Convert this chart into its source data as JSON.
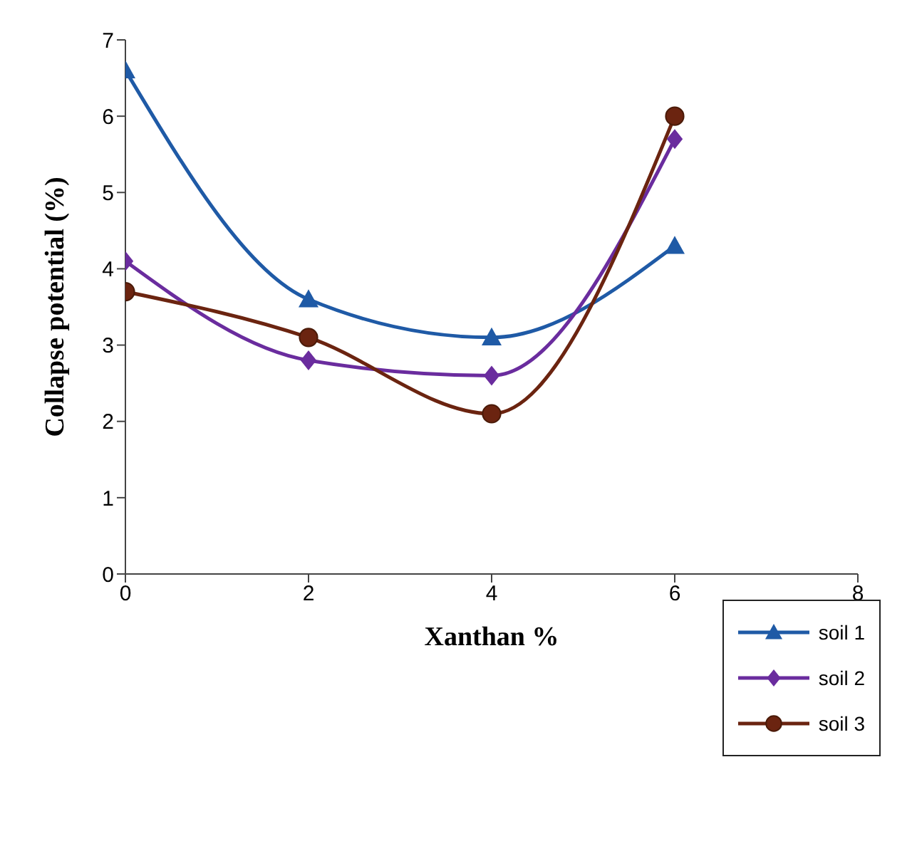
{
  "chart_data": {
    "type": "line",
    "xlabel": "Xanthan %",
    "ylabel": "Collapse potential  (%)",
    "x": [
      0,
      2,
      4,
      6
    ],
    "xlim": [
      0,
      8
    ],
    "xticks": [
      0,
      2,
      4,
      6,
      8
    ],
    "ylim": [
      0,
      7
    ],
    "yticks": [
      0,
      1,
      2,
      3,
      4,
      5,
      6,
      7
    ],
    "grid": false,
    "legend": "bottom right",
    "series": [
      {
        "name": "soil 1",
        "color": "#1f5aa6",
        "marker": "triangle",
        "values": [
          6.6,
          3.6,
          3.1,
          4.3
        ]
      },
      {
        "name": "soil 2",
        "color": "#6a2c9e",
        "marker": "diamond",
        "values": [
          4.1,
          2.8,
          2.6,
          5.7
        ]
      },
      {
        "name": "soil 3",
        "color": "#6b2410",
        "marker": "circle",
        "values": [
          3.7,
          3.1,
          2.1,
          6.0
        ]
      }
    ]
  }
}
